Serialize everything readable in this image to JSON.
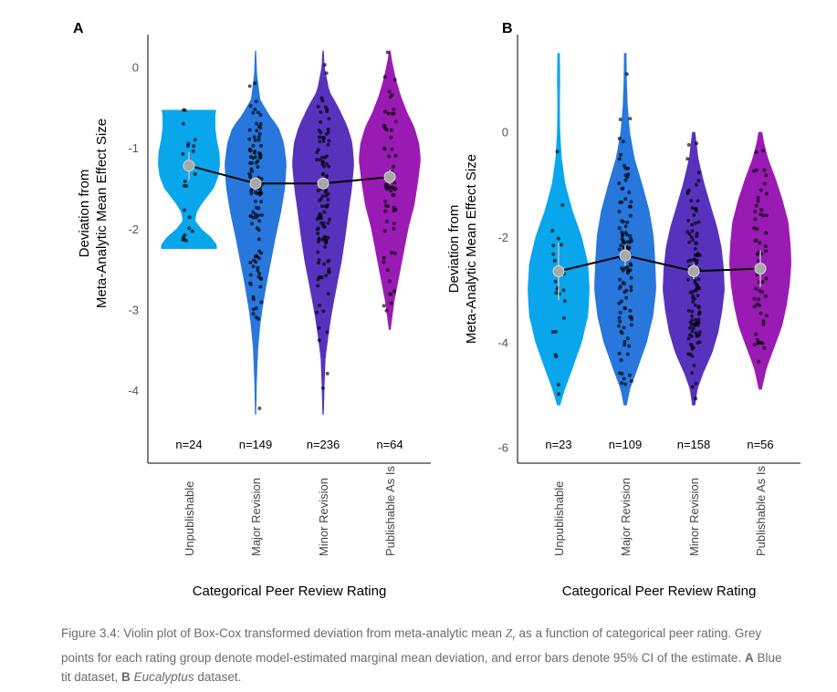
{
  "chart_data": [
    {
      "type": "violin",
      "panel_label": "A",
      "dataset": "Blue tit",
      "ylabel_line1": "Deviation from",
      "ylabel_line2": "Meta-Analytic Mean Effect Size",
      "xlabel": "Categorical Peer Review Rating",
      "ylim": [
        -4.9,
        0.4
      ],
      "yticks": [
        0,
        -1,
        -2,
        -3,
        -4
      ],
      "categories": [
        "Unpublishable",
        "Major Revision",
        "Minor Revision",
        "Publishable As Is"
      ],
      "colors": [
        "#0aa6ec",
        "#2877dd",
        "#5733bd",
        "#9a1bb3"
      ],
      "n_labels": [
        "n=24",
        "n=149",
        "n=236",
        "n=64"
      ],
      "means": [
        -1.22,
        -1.44,
        -1.44,
        -1.36
      ],
      "ci": [
        [
          -1.4,
          -1.05
        ],
        [
          -1.5,
          -1.38
        ],
        [
          -1.5,
          -1.38
        ],
        [
          -1.45,
          -1.27
        ]
      ],
      "ranges": [
        [
          -2.25,
          -0.53
        ],
        [
          -4.3,
          0.2
        ],
        [
          -4.3,
          0.2
        ],
        [
          -3.25,
          0.2
        ]
      ],
      "violin_profiles": [
        [
          [
            -2.25,
            0.9
          ],
          [
            -2.2,
            0.9
          ],
          [
            -2.1,
            0.7
          ],
          [
            -2.0,
            0.4
          ],
          [
            -1.9,
            0.2
          ],
          [
            -1.8,
            0.25
          ],
          [
            -1.7,
            0.4
          ],
          [
            -1.6,
            0.6
          ],
          [
            -1.5,
            0.8
          ],
          [
            -1.35,
            0.95
          ],
          [
            -1.2,
            1.0
          ],
          [
            -1.05,
            0.98
          ],
          [
            -0.9,
            0.9
          ],
          [
            -0.75,
            0.85
          ],
          [
            -0.6,
            0.85
          ],
          [
            -0.53,
            0.88
          ]
        ],
        [
          [
            -4.3,
            0.02
          ],
          [
            -3.9,
            0.04
          ],
          [
            -3.5,
            0.08
          ],
          [
            -3.2,
            0.15
          ],
          [
            -3.0,
            0.22
          ],
          [
            -2.7,
            0.35
          ],
          [
            -2.4,
            0.5
          ],
          [
            -2.1,
            0.65
          ],
          [
            -1.8,
            0.82
          ],
          [
            -1.5,
            0.95
          ],
          [
            -1.2,
            1.0
          ],
          [
            -0.95,
            0.92
          ],
          [
            -0.75,
            0.75
          ],
          [
            -0.6,
            0.45
          ],
          [
            -0.4,
            0.15
          ],
          [
            -0.1,
            0.05
          ],
          [
            0.2,
            0.02
          ]
        ],
        [
          [
            -4.3,
            0.02
          ],
          [
            -3.9,
            0.05
          ],
          [
            -3.6,
            0.08
          ],
          [
            -3.3,
            0.18
          ],
          [
            -3.0,
            0.3
          ],
          [
            -2.7,
            0.45
          ],
          [
            -2.4,
            0.6
          ],
          [
            -2.1,
            0.72
          ],
          [
            -1.8,
            0.82
          ],
          [
            -1.5,
            0.93
          ],
          [
            -1.2,
            1.0
          ],
          [
            -0.95,
            0.95
          ],
          [
            -0.75,
            0.8
          ],
          [
            -0.5,
            0.5
          ],
          [
            -0.3,
            0.2
          ],
          [
            0.0,
            0.05
          ],
          [
            0.2,
            0.02
          ]
        ],
        [
          [
            -3.25,
            0.03
          ],
          [
            -2.9,
            0.15
          ],
          [
            -2.6,
            0.3
          ],
          [
            -2.3,
            0.45
          ],
          [
            -2.0,
            0.6
          ],
          [
            -1.7,
            0.8
          ],
          [
            -1.4,
            0.92
          ],
          [
            -1.15,
            1.0
          ],
          [
            -0.95,
            0.95
          ],
          [
            -0.75,
            0.8
          ],
          [
            -0.55,
            0.55
          ],
          [
            -0.35,
            0.35
          ],
          [
            -0.15,
            0.2
          ],
          [
            0.1,
            0.06
          ],
          [
            0.2,
            0.03
          ]
        ]
      ]
    },
    {
      "type": "violin",
      "panel_label": "B",
      "dataset": "Eucalyptus",
      "ylabel_line1": "Deviation from",
      "ylabel_line2": "Meta-Analytic Mean Effect Size",
      "xlabel": "Categorical Peer Review Rating",
      "ylim": [
        -6.3,
        1.85
      ],
      "yticks": [
        0,
        -2,
        -4,
        -6
      ],
      "categories": [
        "Unpublishable",
        "Major Revision",
        "Minor Revision",
        "Publishable As Is"
      ],
      "colors": [
        "#0aa6ec",
        "#2877dd",
        "#5733bd",
        "#9a1bb3"
      ],
      "n_labels": [
        "n=23",
        "n=109",
        "n=158",
        "n=56"
      ],
      "means": [
        -2.65,
        -2.35,
        -2.65,
        -2.6
      ],
      "ci": [
        [
          -3.2,
          -2.1
        ],
        [
          -2.55,
          -2.15
        ],
        [
          -2.8,
          -2.5
        ],
        [
          -2.95,
          -2.25
        ]
      ],
      "ranges": [
        [
          -5.2,
          1.5
        ],
        [
          -5.2,
          1.5
        ],
        [
          -5.2,
          0.0
        ],
        [
          -4.9,
          0.0
        ]
      ],
      "violin_profiles": [
        [
          [
            -5.2,
            0.05
          ],
          [
            -4.9,
            0.2
          ],
          [
            -4.5,
            0.45
          ],
          [
            -4.0,
            0.75
          ],
          [
            -3.5,
            0.95
          ],
          [
            -3.0,
            1.0
          ],
          [
            -2.5,
            0.95
          ],
          [
            -2.0,
            0.75
          ],
          [
            -1.5,
            0.45
          ],
          [
            -1.0,
            0.22
          ],
          [
            -0.5,
            0.1
          ],
          [
            0.0,
            0.05
          ],
          [
            0.5,
            0.04
          ],
          [
            1.0,
            0.05
          ],
          [
            1.5,
            0.04
          ]
        ],
        [
          [
            -5.2,
            0.05
          ],
          [
            -4.9,
            0.15
          ],
          [
            -4.5,
            0.4
          ],
          [
            -4.0,
            0.7
          ],
          [
            -3.5,
            0.9
          ],
          [
            -3.0,
            1.0
          ],
          [
            -2.5,
            0.97
          ],
          [
            -2.0,
            0.92
          ],
          [
            -1.5,
            0.78
          ],
          [
            -1.0,
            0.55
          ],
          [
            -0.5,
            0.3
          ],
          [
            0.0,
            0.15
          ],
          [
            0.5,
            0.08
          ],
          [
            1.0,
            0.05
          ],
          [
            1.5,
            0.04
          ]
        ],
        [
          [
            -5.2,
            0.05
          ],
          [
            -4.9,
            0.12
          ],
          [
            -4.6,
            0.3
          ],
          [
            -4.2,
            0.6
          ],
          [
            -3.8,
            0.8
          ],
          [
            -3.4,
            0.92
          ],
          [
            -3.0,
            1.0
          ],
          [
            -2.6,
            0.97
          ],
          [
            -2.2,
            0.9
          ],
          [
            -1.8,
            0.75
          ],
          [
            -1.4,
            0.55
          ],
          [
            -1.0,
            0.35
          ],
          [
            -0.5,
            0.15
          ],
          [
            0.0,
            0.05
          ]
        ],
        [
          [
            -4.9,
            0.05
          ],
          [
            -4.5,
            0.2
          ],
          [
            -4.1,
            0.45
          ],
          [
            -3.7,
            0.7
          ],
          [
            -3.3,
            0.85
          ],
          [
            -2.9,
            0.95
          ],
          [
            -2.5,
            1.0
          ],
          [
            -2.1,
            0.97
          ],
          [
            -1.7,
            0.9
          ],
          [
            -1.3,
            0.72
          ],
          [
            -0.9,
            0.5
          ],
          [
            -0.5,
            0.25
          ],
          [
            -0.2,
            0.12
          ],
          [
            0.0,
            0.06
          ]
        ]
      ]
    }
  ],
  "caption": {
    "prefix": "Figure 3.4: Violin plot of Box-Cox transformed deviation from meta-analytic mean ",
    "symbol": "Z",
    "symbol_sub": "r",
    "middle": " as a function of categorical peer rating. Grey points for each rating group denote model-estimated marginal mean deviation, and error bars denote 95% CI of the estimate. ",
    "label_a": "A",
    "text_a": " Blue tit dataset, ",
    "label_b": "B",
    "text_b_italic": "Eucalyptus",
    "text_b": " dataset."
  }
}
